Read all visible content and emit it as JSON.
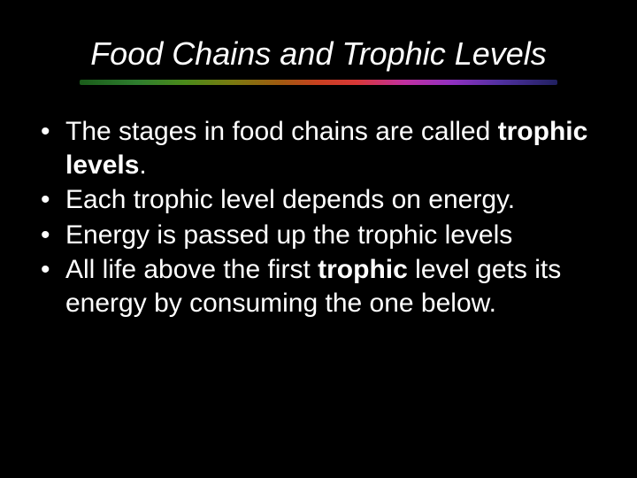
{
  "title": "Food Chains and Trophic Levels",
  "title_color": "#ffffff",
  "title_fontsize": 36,
  "title_italic": true,
  "background_color": "#000000",
  "body_color": "#ffffff",
  "body_fontsize": 30,
  "font_family": "Comic Sans MS",
  "underline_gradient": [
    "#1a5c1a",
    "#2e7d2e",
    "#4a8a1a",
    "#7a7a10",
    "#a05a10",
    "#c84020",
    "#d83838",
    "#c030a0",
    "#9030c0",
    "#5030a0",
    "#202060"
  ],
  "bullets": [
    {
      "pre": "The stages in food chains are called ",
      "bold": "trophic levels",
      "post": "."
    },
    {
      "pre": "Each trophic level depends on energy.",
      "bold": "",
      "post": ""
    },
    {
      "pre": "Energy is passed up the trophic levels",
      "bold": "",
      "post": ""
    },
    {
      "pre": "All life above the first ",
      "bold": "trophic",
      "post": " level gets its energy by consuming the one below."
    }
  ]
}
